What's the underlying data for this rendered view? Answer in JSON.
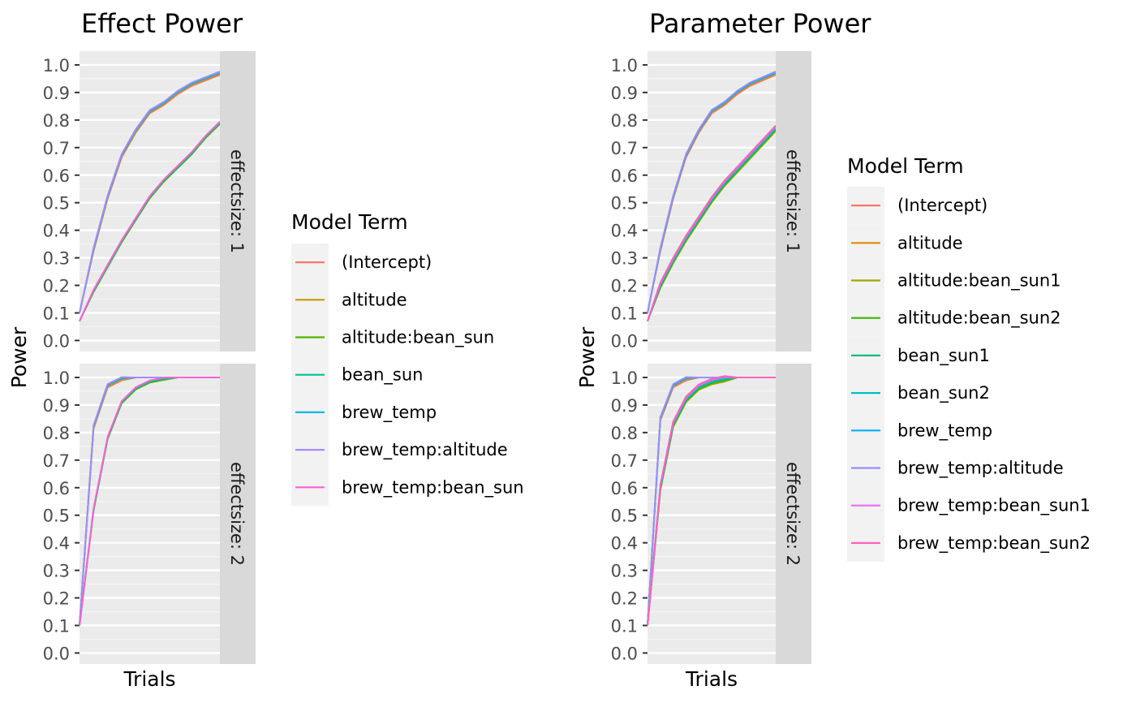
{
  "chart_data": [
    {
      "type": "line",
      "title": "Effect Power",
      "xlabel": "Trials",
      "ylabel": "Power",
      "ylim": [
        -0.04,
        1.05
      ],
      "yticks": [
        "0.0",
        "0.1",
        "0.2",
        "0.3",
        "0.4",
        "0.5",
        "0.6",
        "0.7",
        "0.8",
        "0.9",
        "1.0"
      ],
      "x": [
        0,
        0.1,
        0.2,
        0.3,
        0.4,
        0.5,
        0.6,
        0.7,
        0.8,
        0.9,
        1.0
      ],
      "grid": true,
      "legend": {
        "title": "Model Term",
        "placement": "right",
        "entries": [
          {
            "name": "(Intercept)",
            "color": "#F8766D"
          },
          {
            "name": "altitude",
            "color": "#C49A00"
          },
          {
            "name": "altitude:bean_sun",
            "color": "#53B400"
          },
          {
            "name": "bean_sun",
            "color": "#00C094"
          },
          {
            "name": "brew_temp",
            "color": "#00B6EB"
          },
          {
            "name": "brew_temp:altitude",
            "color": "#A58AFF"
          },
          {
            "name": "brew_temp:bean_sun",
            "color": "#FB61D7"
          }
        ]
      },
      "facets": [
        {
          "label": "effectsize: 1",
          "groups": [
            {
              "names": [
                "(Intercept)",
                "altitude",
                "brew_temp",
                "brew_temp:altitude"
              ],
              "values": [
                0.1,
                0.33,
                0.52,
                0.67,
                0.76,
                0.83,
                0.86,
                0.9,
                0.93,
                0.95,
                0.97
              ]
            },
            {
              "names": [
                "altitude:bean_sun",
                "bean_sun",
                "brew_temp:bean_sun"
              ],
              "values": [
                0.07,
                0.18,
                0.27,
                0.36,
                0.44,
                0.52,
                0.58,
                0.63,
                0.68,
                0.74,
                0.79
              ]
            }
          ]
        },
        {
          "label": "effectsize: 2",
          "groups": [
            {
              "names": [
                "(Intercept)",
                "altitude",
                "brew_temp",
                "brew_temp:altitude"
              ],
              "values": [
                0.1,
                0.82,
                0.97,
                0.995,
                1.0,
                1.0,
                1.0,
                1.0,
                1.0,
                1.0,
                1.0
              ]
            },
            {
              "names": [
                "altitude:bean_sun",
                "bean_sun",
                "brew_temp:bean_sun"
              ],
              "values": [
                0.1,
                0.52,
                0.78,
                0.91,
                0.96,
                0.985,
                0.995,
                1.0,
                1.0,
                1.0,
                1.0
              ]
            }
          ]
        }
      ]
    },
    {
      "type": "line",
      "title": "Parameter Power",
      "xlabel": "Trials",
      "ylabel": "Power",
      "ylim": [
        -0.04,
        1.05
      ],
      "yticks": [
        "0.0",
        "0.1",
        "0.2",
        "0.3",
        "0.4",
        "0.5",
        "0.6",
        "0.7",
        "0.8",
        "0.9",
        "1.0"
      ],
      "x": [
        0,
        0.1,
        0.2,
        0.3,
        0.4,
        0.5,
        0.6,
        0.7,
        0.8,
        0.9,
        1.0
      ],
      "grid": true,
      "legend": {
        "title": "Model Term",
        "placement": "right",
        "entries": [
          {
            "name": "(Intercept)",
            "color": "#F8766D"
          },
          {
            "name": "altitude",
            "color": "#D89000"
          },
          {
            "name": "altitude:bean_sun1",
            "color": "#A3A500"
          },
          {
            "name": "altitude:bean_sun2",
            "color": "#39B600"
          },
          {
            "name": "bean_sun1",
            "color": "#00BF7D"
          },
          {
            "name": "bean_sun2",
            "color": "#00BFC4"
          },
          {
            "name": "brew_temp",
            "color": "#00B0F6"
          },
          {
            "name": "brew_temp:altitude",
            "color": "#9590FF"
          },
          {
            "name": "brew_temp:bean_sun1",
            "color": "#E76BF3"
          },
          {
            "name": "brew_temp:bean_sun2",
            "color": "#FF62BC"
          }
        ]
      },
      "facets": [
        {
          "label": "effectsize: 1",
          "groups": [
            {
              "names": [
                "(Intercept)",
                "altitude",
                "brew_temp",
                "brew_temp:altitude"
              ],
              "values": [
                0.1,
                0.33,
                0.52,
                0.67,
                0.76,
                0.83,
                0.86,
                0.9,
                0.93,
                0.95,
                0.97
              ]
            },
            {
              "names": [
                "altitude:bean_sun1",
                "altitude:bean_sun2",
                "bean_sun1",
                "bean_sun2",
                "brew_temp:bean_sun1",
                "brew_temp:bean_sun2"
              ],
              "values": [
                0.07,
                0.2,
                0.29,
                0.37,
                0.44,
                0.51,
                0.57,
                0.62,
                0.67,
                0.72,
                0.77
              ]
            }
          ]
        },
        {
          "label": "effectsize: 2",
          "groups": [
            {
              "names": [
                "(Intercept)",
                "altitude",
                "brew_temp",
                "brew_temp:altitude"
              ],
              "values": [
                0.1,
                0.85,
                0.97,
                0.995,
                1.0,
                1.0,
                1.0,
                1.0,
                1.0,
                1.0,
                1.0
              ]
            },
            {
              "names": [
                "altitude:bean_sun1",
                "altitude:bean_sun2",
                "bean_sun1",
                "bean_sun2",
                "brew_temp:bean_sun1",
                "brew_temp:bean_sun2"
              ],
              "values": [
                0.1,
                0.6,
                0.83,
                0.92,
                0.965,
                0.985,
                0.995,
                1.0,
                1.0,
                1.0,
                1.0
              ]
            }
          ]
        }
      ]
    }
  ]
}
